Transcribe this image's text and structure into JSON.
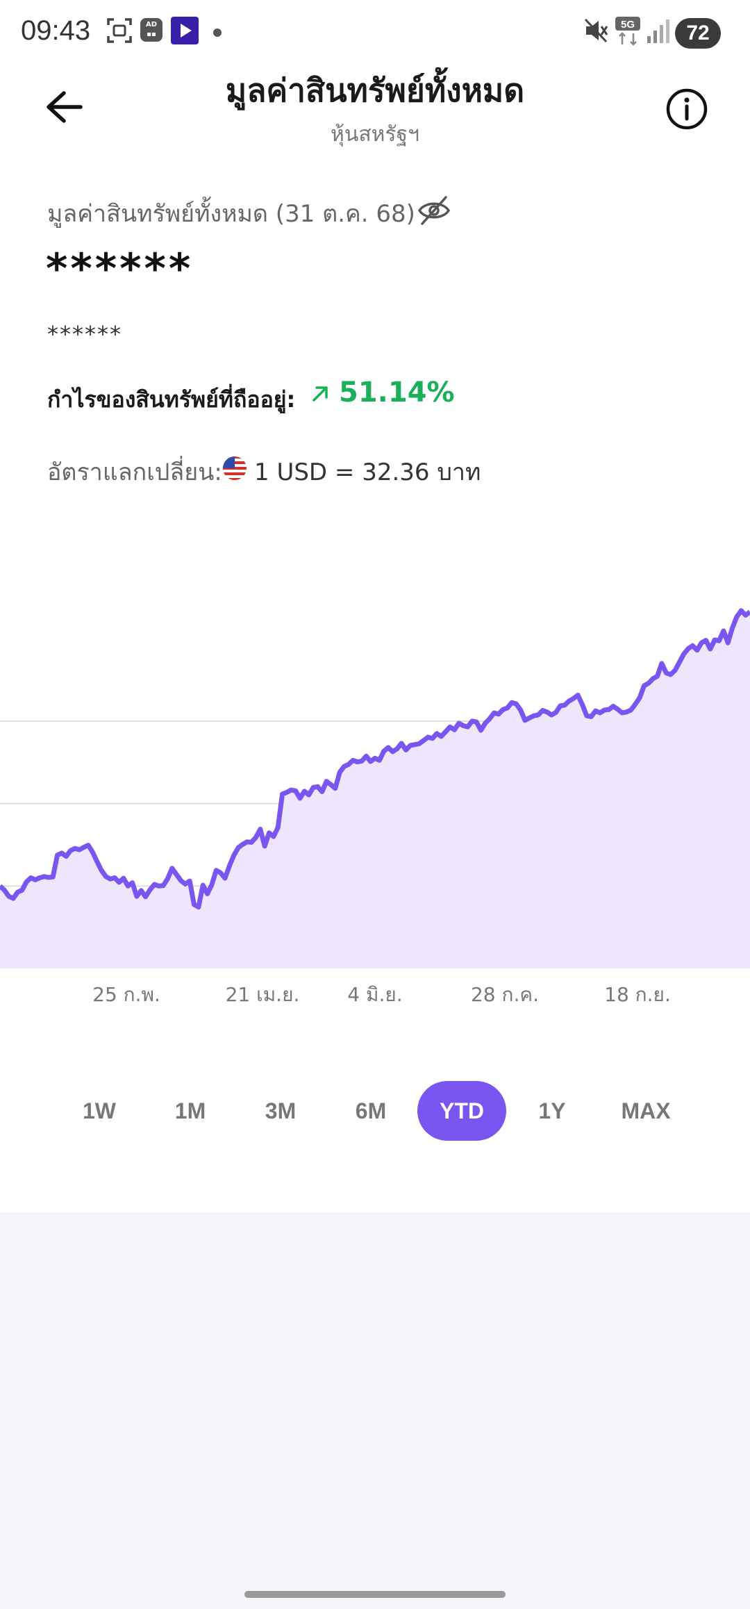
{
  "status_bar": {
    "time": "09:43",
    "battery": "72",
    "network": "5G",
    "icons": [
      "screenshot-icon",
      "ad-blocker-icon",
      "media-app-icon",
      "dot-icon",
      "mute-icon",
      "5g-icon",
      "signal-icon",
      "battery-icon"
    ]
  },
  "header": {
    "title": "มูลค่าสินทรัพย์ทั้งหมด",
    "subtitle": "หุ้นสหรัฐฯ",
    "back_icon": "arrow-left-icon",
    "info_icon": "info-icon"
  },
  "summary": {
    "value_label": "มูลค่าสินทรัพย์ทั้งหมด (31 ต.ค. 68)",
    "hidden_icon": "eye-off-icon",
    "masked_value": "******",
    "masked_secondary": "******",
    "profit_label": "กำไรของสินทรัพย์ที่ถืออยู่:",
    "profit_value": "51.14%",
    "profit_color": "#1ab05a",
    "fx_label": "อัตราแลกเปลี่ยน:",
    "fx_flag": "us-flag-icon",
    "fx_value": "1 USD = 32.36 บาท"
  },
  "chart_data": {
    "type": "area",
    "line_color": "#7b55f0",
    "fill_color": "#ede6fd",
    "x_tick_labels": [
      "25 ก.พ.",
      "21 เม.ย.",
      "4 มิ.ย.",
      "28 ก.ค.",
      "18 ก.ย."
    ],
    "grid": true,
    "y_axis_labels": false,
    "values": [
      100,
      99,
      97.5,
      97,
      98.5,
      99,
      101,
      102,
      101.5,
      102,
      102.3,
      102.1,
      102.2,
      107.5,
      108,
      107.2,
      108.6,
      109.1,
      108.8,
      109.4,
      109.9,
      108.2,
      105.9,
      103.8,
      102.3,
      101.7,
      102,
      100.9,
      101.9,
      100,
      100.8,
      97.5,
      98.9,
      97.4,
      99.1,
      100.4,
      100,
      100.1,
      101.8,
      104.3,
      102.8,
      101.3,
      100.5,
      101.2,
      95.5,
      94.9,
      100.2,
      98.1,
      100.3,
      103.8,
      103.2,
      101.9,
      104.9,
      107.4,
      109.3,
      110.1,
      110.7,
      110.6,
      111.8,
      113.8,
      109.7,
      112.9,
      112,
      114.2,
      122.3,
      122.7,
      123.3,
      123.1,
      121.3,
      123,
      122.1,
      123.9,
      124.1,
      122.9,
      125.4,
      124.6,
      123.7,
      127.6,
      129,
      129.5,
      130.5,
      130.1,
      130.3,
      131.5,
      130.2,
      131,
      130.5,
      132.7,
      133.6,
      132.6,
      133.3,
      134.6,
      133,
      134.1,
      134.3,
      134.5,
      135.3,
      136.1,
      135.8,
      137,
      136.3,
      137.4,
      138.6,
      137.9,
      139.5,
      138.9,
      138.6,
      140,
      139.8,
      137.8,
      139.5,
      140.6,
      142,
      141.7,
      142.8,
      143.2,
      144.5,
      144.2,
      142.7,
      140.2,
      140.8,
      141.3,
      141.5,
      142.6,
      142.2,
      141.5,
      142.1,
      143.7,
      143.9,
      144.9,
      145.5,
      146.3,
      144,
      141.3,
      141.1,
      142.5,
      142,
      142.7,
      142.8,
      143.6,
      142.9,
      142,
      142.2,
      142.7,
      144.1,
      145.7,
      148.6,
      149.2,
      150.3,
      150.9,
      154,
      151.7,
      151.3,
      152.3,
      154.3,
      156.3,
      157.6,
      158.3,
      157.2,
      159,
      159.6,
      157.5,
      159.7,
      159.5,
      161.9,
      159,
      162.6,
      165.3,
      166.8,
      165.7,
      166.5
    ]
  },
  "ranges": {
    "options": [
      "1W",
      "1M",
      "3M",
      "6M",
      "YTD",
      "1Y",
      "MAX"
    ],
    "selected": "YTD",
    "accent_color": "#7b55f0"
  }
}
